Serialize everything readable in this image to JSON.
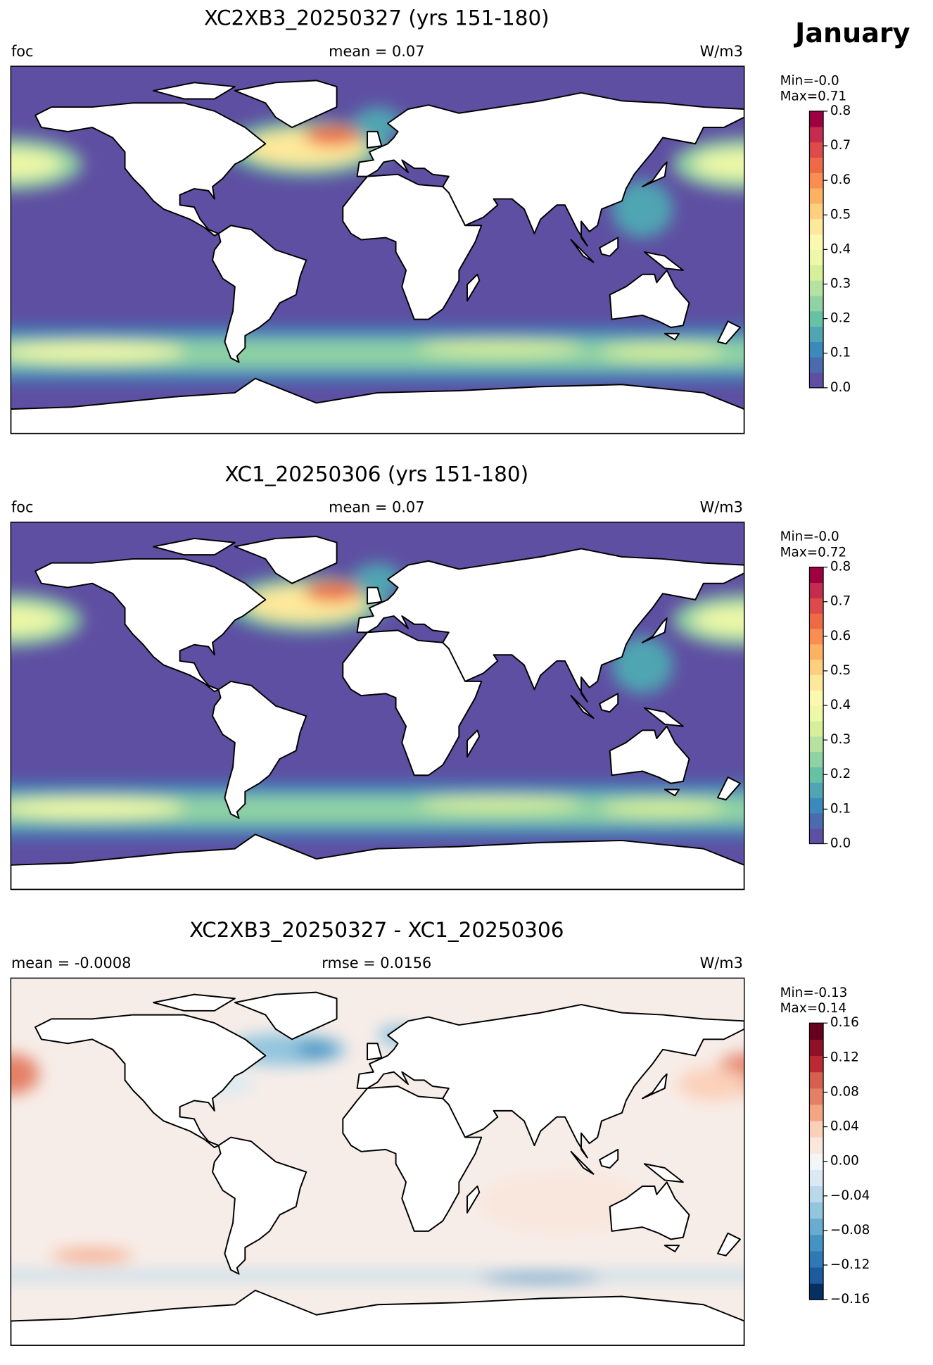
{
  "month": "January",
  "panels": [
    {
      "title": "XC2XB3_20250327 (yrs 151-180)",
      "left": "foc",
      "center": "mean = 0.07",
      "right": "W/m3",
      "min_label": "Min=-0.0",
      "max_label": "Max=0.71",
      "field": "absolute",
      "colorbar": {
        "lim": [
          0,
          0.8
        ],
        "ticks": [
          {
            "value": 0,
            "label": "0.0"
          },
          0.1,
          0.2,
          0.3,
          0.4,
          0.5,
          0.6,
          0.7,
          0.8
        ],
        "colors": [
          "#5e4fa2",
          "#4a6bb0",
          "#3a8abc",
          "#4fa6b2",
          "#66c2a5",
          "#8fd2a4",
          "#b5e2a1",
          "#d5ef9b",
          "#eef8a7",
          "#fbf8b0",
          "#fee99a",
          "#fdd080",
          "#fdb163",
          "#f88e52",
          "#ee6a45",
          "#dc4a4c",
          "#c42b4c",
          "#9e0142"
        ]
      }
    },
    {
      "title": "XC1_20250306 (yrs 151-180)",
      "left": "foc",
      "center": "mean = 0.07",
      "right": "W/m3",
      "min_label": "Min=-0.0",
      "max_label": "Max=0.72",
      "field": "absolute",
      "colorbar": {
        "lim": [
          0,
          0.8
        ],
        "ticks": [
          {
            "value": 0,
            "label": "0.0"
          },
          0.1,
          0.2,
          0.3,
          0.4,
          0.5,
          0.6,
          0.7,
          0.8
        ],
        "colors": [
          "#5e4fa2",
          "#4a6bb0",
          "#3a8abc",
          "#4fa6b2",
          "#66c2a5",
          "#8fd2a4",
          "#b5e2a1",
          "#d5ef9b",
          "#eef8a7",
          "#fbf8b0",
          "#fee99a",
          "#fdd080",
          "#fdb163",
          "#f88e52",
          "#ee6a45",
          "#dc4a4c",
          "#c42b4c",
          "#9e0142"
        ]
      }
    },
    {
      "title": "XC2XB3_20250327 - XC1_20250306",
      "left": "mean = -0.0008",
      "center": "rmse = 0.0156",
      "right": "W/m3",
      "min_label": "Min=-0.13",
      "max_label": "Max=0.14",
      "field": "difference",
      "colorbar": {
        "lim": [
          -0.16,
          0.16
        ],
        "ticks": [
          {
            "value": -0.16,
            "label": "−0.16"
          },
          {
            "value": -0.12,
            "label": "−0.12"
          },
          {
            "value": -0.08,
            "label": "−0.08"
          },
          {
            "value": -0.04,
            "label": "−0.04"
          },
          {
            "value": 0,
            "label": "0.00"
          },
          0.04,
          0.08,
          0.12,
          0.16
        ],
        "colors": [
          "#053061",
          "#1c5c9e",
          "#2f79b5",
          "#4393c3",
          "#6aacd0",
          "#92c5de",
          "#b9d9ea",
          "#dbeaf2",
          "#f3f5f6",
          "#f9e6dc",
          "#fbd0b9",
          "#f4a582",
          "#e48066",
          "#d6604d",
          "#bb2a34",
          "#8f1127",
          "#67001f"
        ]
      }
    }
  ]
}
